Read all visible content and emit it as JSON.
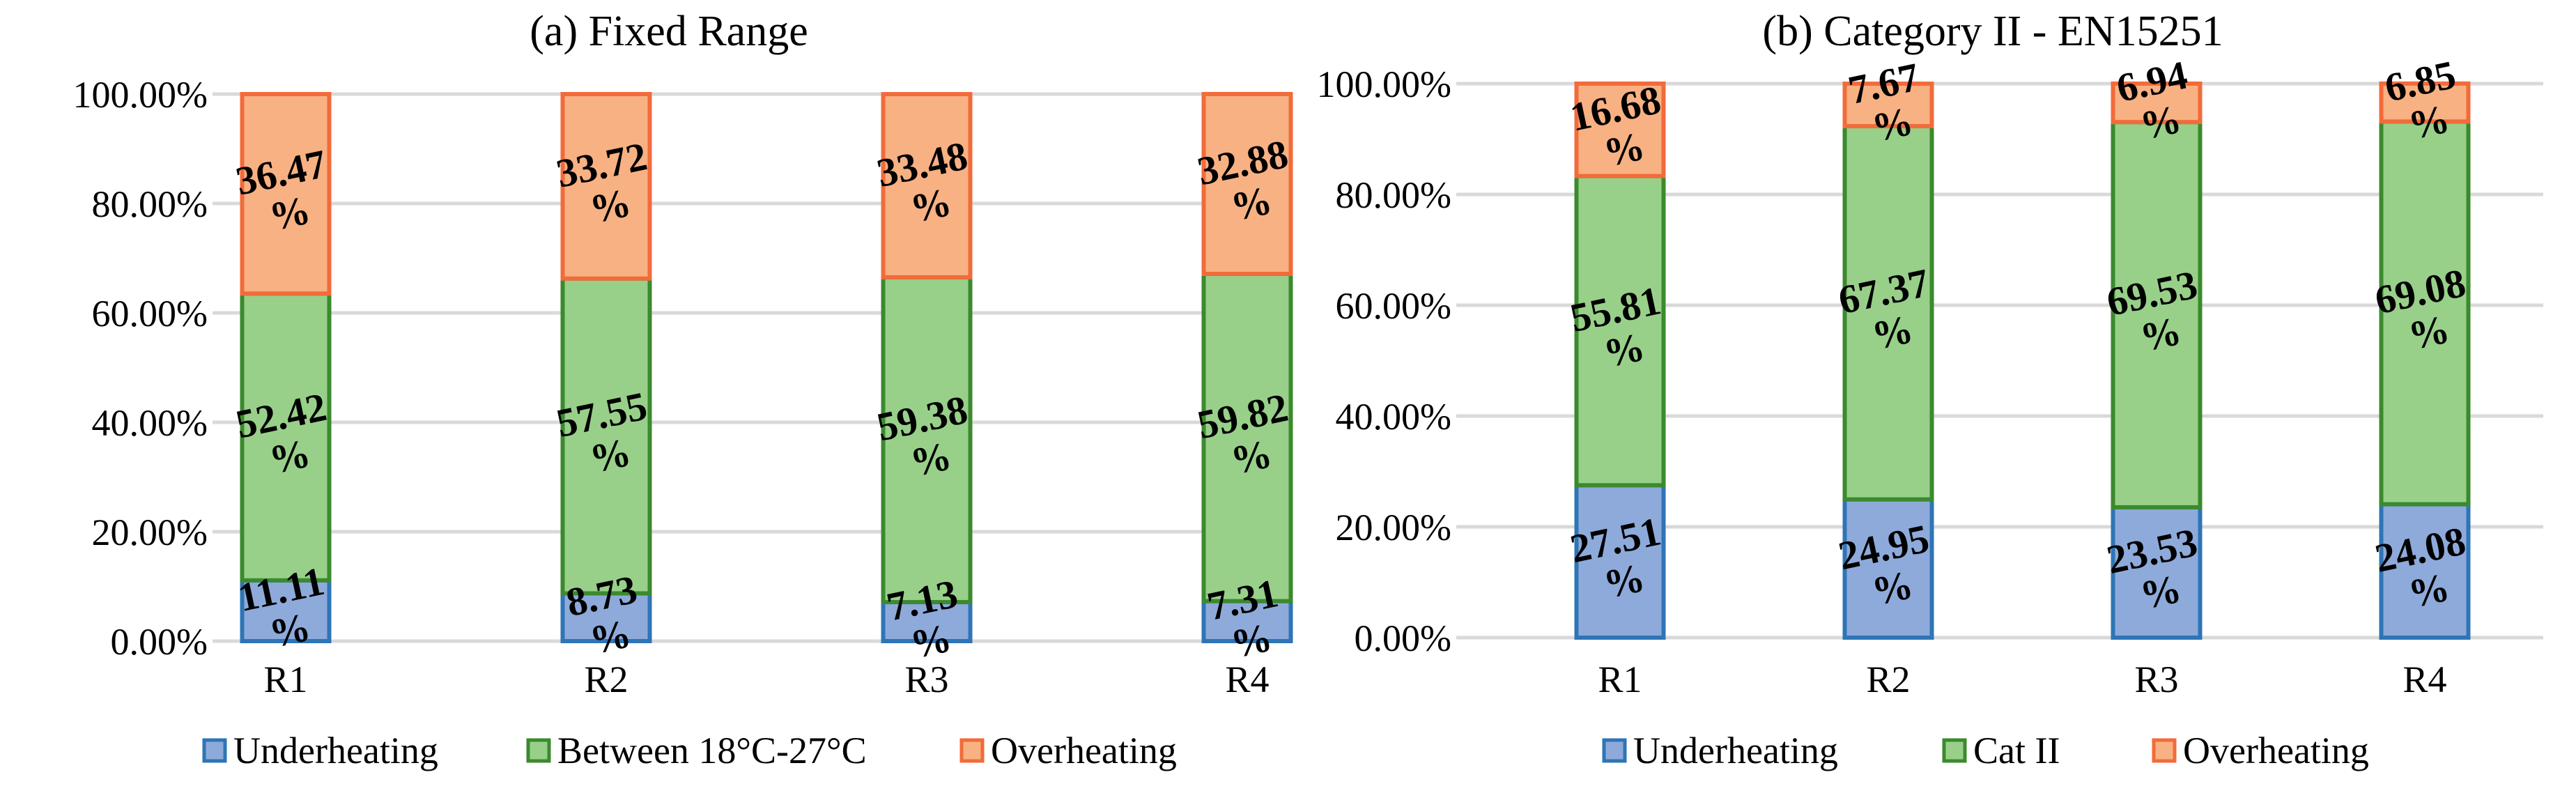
{
  "chart_data": [
    {
      "type": "bar",
      "stacked": true,
      "normalized": true,
      "title": "(a) Fixed Range",
      "categories": [
        "R1",
        "R2",
        "R3",
        "R4"
      ],
      "ylim": [
        0,
        100
      ],
      "yticks": [
        0,
        20,
        40,
        60,
        80,
        100
      ],
      "ytick_labels": [
        "0.00%",
        "20.00%",
        "40.00%",
        "60.00%",
        "80.00%",
        "100.00%"
      ],
      "grid": true,
      "legend_position": "bottom",
      "series": [
        {
          "name": "Underheating",
          "fill": "#8eaadb",
          "stroke": "#2e75b6",
          "values": [
            11.11,
            8.73,
            7.13,
            7.31
          ],
          "labels": [
            "11.11 %",
            "8.73 %",
            "7.13 %",
            "7.31 %"
          ]
        },
        {
          "name": "Between 18°C-27°C",
          "fill": "#98d08a",
          "stroke": "#3b8a2e",
          "values": [
            52.42,
            57.55,
            59.38,
            59.82
          ],
          "labels": [
            "52.42 %",
            "57.55 %",
            "59.38 %",
            "59.82 %"
          ]
        },
        {
          "name": "Overheating",
          "fill": "#f8b183",
          "stroke": "#f26b3a",
          "values": [
            36.47,
            33.72,
            33.48,
            32.88
          ],
          "labels": [
            "36.47 %",
            "33.72 %",
            "33.48 %",
            "32.88 %"
          ]
        }
      ]
    },
    {
      "type": "bar",
      "stacked": true,
      "normalized": true,
      "title": "(b) Category II - EN15251",
      "categories": [
        "R1",
        "R2",
        "R3",
        "R4"
      ],
      "ylim": [
        0,
        100
      ],
      "yticks": [
        0,
        20,
        40,
        60,
        80,
        100
      ],
      "ytick_labels": [
        "0.00%",
        "20.00%",
        "40.00%",
        "60.00%",
        "80.00%",
        "100.00%"
      ],
      "grid": true,
      "legend_position": "bottom",
      "series": [
        {
          "name": "Underheating",
          "fill": "#8eaadb",
          "stroke": "#2e75b6",
          "values": [
            27.51,
            24.95,
            23.53,
            24.08
          ],
          "labels": [
            "27.51 %",
            "24.95 %",
            "23.53 %",
            "24.08 %"
          ]
        },
        {
          "name": "Cat II",
          "fill": "#98d08a",
          "stroke": "#3b8a2e",
          "values": [
            55.81,
            67.37,
            69.53,
            69.08
          ],
          "labels": [
            "55.81 %",
            "67.37 %",
            "69.53 %",
            "69.08 %"
          ]
        },
        {
          "name": "Overheating",
          "fill": "#f8b183",
          "stroke": "#f26b3a",
          "values": [
            16.68,
            7.67,
            6.94,
            6.85
          ],
          "labels": [
            "16.68 %",
            "7.67 %",
            "6.94 %",
            "6.85 %"
          ]
        }
      ]
    }
  ]
}
